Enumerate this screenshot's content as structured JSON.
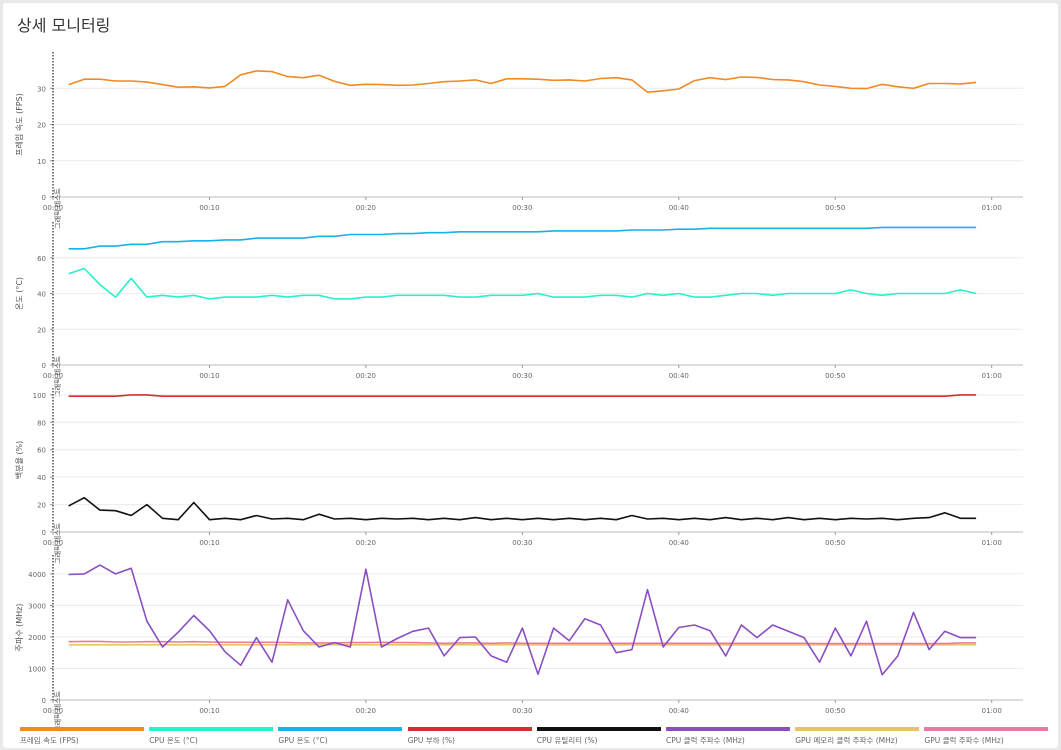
{
  "page": {
    "title": "상세 모니터링"
  },
  "chart_data": [
    {
      "type": "line",
      "ylabel": "프레임 속도 (FPS)",
      "marker_label": "그래픽 테스트",
      "ylim": [
        0,
        40
      ],
      "yticks": [
        0,
        10,
        20,
        30
      ],
      "xlim": [
        0,
        62
      ],
      "xtick_labels": [
        "00:00",
        "00:10",
        "00:20",
        "00:30",
        "00:40",
        "00:50",
        "01:00"
      ],
      "x": [
        1,
        2,
        3,
        4,
        5,
        6,
        7,
        8,
        9,
        10,
        11,
        12,
        13,
        14,
        15,
        16,
        17,
        18,
        19,
        20,
        21,
        22,
        23,
        24,
        25,
        26,
        27,
        28,
        29,
        30,
        31,
        32,
        33,
        34,
        35,
        36,
        37,
        38,
        39,
        40,
        41,
        42,
        43,
        44,
        45,
        46,
        47,
        48,
        49,
        50,
        51,
        52,
        53,
        54,
        55,
        56,
        57,
        58,
        59
      ],
      "series": [
        {
          "name": "프레임 속도 (FPS)",
          "color": "#f08a24",
          "values": [
            31,
            32.5,
            32.5,
            32,
            32,
            31.7,
            31,
            30.3,
            30.4,
            30.1,
            30.5,
            33.7,
            34.8,
            34.6,
            33.2,
            32.9,
            33.6,
            31.9,
            30.8,
            31.1,
            31,
            30.8,
            30.9,
            31.3,
            31.8,
            32,
            32.3,
            31.3,
            32.6,
            32.6,
            32.5,
            32.2,
            32.3,
            32,
            32.7,
            32.9,
            32.3,
            28.9,
            29.3,
            29.8,
            32.1,
            32.9,
            32.4,
            33.1,
            33,
            32.4,
            32.3,
            31.8,
            30.9,
            30.5,
            30,
            29.9,
            31.1,
            30.4,
            30,
            31.3,
            31.3,
            31.2,
            31.6
          ]
        }
      ]
    },
    {
      "type": "line",
      "ylabel": "온도 (°C)",
      "marker_label": "그래픽 테스트",
      "ylim": [
        0,
        80
      ],
      "yticks": [
        0,
        20,
        40,
        60
      ],
      "xlim": [
        0,
        62
      ],
      "xtick_labels": [
        "00:00",
        "00:10",
        "00:20",
        "00:30",
        "00:40",
        "00:50",
        "01:00"
      ],
      "x": [
        1,
        2,
        3,
        4,
        5,
        6,
        7,
        8,
        9,
        10,
        11,
        12,
        13,
        14,
        15,
        16,
        17,
        18,
        19,
        20,
        21,
        22,
        23,
        24,
        25,
        26,
        27,
        28,
        29,
        30,
        31,
        32,
        33,
        34,
        35,
        36,
        37,
        38,
        39,
        40,
        41,
        42,
        43,
        44,
        45,
        46,
        47,
        48,
        49,
        50,
        51,
        52,
        53,
        54,
        55,
        56,
        57,
        58,
        59
      ],
      "series": [
        {
          "name": "GPU 온도 (°C)",
          "color": "#1ab0ea",
          "values": [
            65,
            65,
            66.5,
            66.5,
            67.5,
            67.5,
            69,
            69,
            69.5,
            69.5,
            70,
            70,
            71,
            71,
            71,
            71,
            72,
            72,
            73,
            73,
            73,
            73.5,
            73.5,
            74,
            74,
            74.5,
            74.5,
            74.5,
            74.5,
            74.5,
            74.5,
            75,
            75,
            75,
            75,
            75,
            75.5,
            75.5,
            75.5,
            76,
            76,
            76.5,
            76.5,
            76.5,
            76.5,
            76.5,
            76.5,
            76.5,
            76.5,
            76.5,
            76.5,
            76.5,
            77,
            77,
            77,
            77,
            77,
            77,
            77
          ]
        },
        {
          "name": "CPU 온도 (°C)",
          "color": "#29f0cb",
          "values": [
            51,
            54,
            45,
            38,
            48.5,
            38,
            39,
            38,
            39,
            37,
            38,
            38,
            38,
            39,
            38,
            39,
            39,
            37,
            37,
            38,
            38,
            39,
            39,
            39,
            39,
            38,
            38,
            39,
            39,
            39,
            40,
            38,
            38,
            38,
            39,
            39,
            38,
            40,
            39,
            40,
            38,
            38,
            39,
            40,
            40,
            39,
            40,
            40,
            40,
            40,
            42,
            40,
            39,
            40,
            40,
            40,
            40,
            42,
            40
          ]
        }
      ]
    },
    {
      "type": "line",
      "ylabel": "백분율 (%)",
      "marker_label": "그래픽 테스트",
      "ylim": [
        0,
        105
      ],
      "yticks": [
        0,
        20,
        40,
        60,
        80,
        100
      ],
      "xlim": [
        0,
        62
      ],
      "xtick_labels": [
        "00:00",
        "00:10",
        "00:20",
        "00:30",
        "00:40",
        "00:50",
        "01:00"
      ],
      "x": [
        1,
        2,
        3,
        4,
        5,
        6,
        7,
        8,
        9,
        10,
        11,
        12,
        13,
        14,
        15,
        16,
        17,
        18,
        19,
        20,
        21,
        22,
        23,
        24,
        25,
        26,
        27,
        28,
        29,
        30,
        31,
        32,
        33,
        34,
        35,
        36,
        37,
        38,
        39,
        40,
        41,
        42,
        43,
        44,
        45,
        46,
        47,
        48,
        49,
        50,
        51,
        52,
        53,
        54,
        55,
        56,
        57,
        58,
        59
      ],
      "series": [
        {
          "name": "GPU 부하 (%)",
          "color": "#d03030",
          "values": [
            99,
            99,
            99,
            99,
            100,
            100,
            99,
            99,
            99,
            99,
            99,
            99,
            99,
            99,
            99,
            99,
            99,
            99,
            99,
            99,
            99,
            99,
            99,
            99,
            99,
            99,
            99,
            99,
            99,
            99,
            99,
            99,
            99,
            99,
            99,
            99,
            99,
            99,
            99,
            99,
            99,
            99,
            99,
            99,
            99,
            99,
            99,
            99,
            99,
            99,
            99,
            99,
            99,
            99,
            99,
            99,
            99,
            100,
            100
          ]
        },
        {
          "name": "CPU 유틸리티 (%)",
          "color": "#111111",
          "values": [
            19,
            25,
            16,
            15.5,
            12,
            20,
            10,
            9,
            21.5,
            9,
            10,
            9,
            12,
            9.5,
            10,
            9,
            13,
            9.5,
            10,
            9,
            10,
            9.5,
            10,
            9,
            10,
            9,
            10.5,
            9,
            10,
            9,
            10,
            9,
            10,
            9,
            10,
            9,
            12,
            9.5,
            10,
            9,
            10,
            9,
            10.5,
            9,
            10,
            9,
            10.5,
            9,
            10,
            9,
            10,
            9.5,
            10,
            9,
            10,
            10.5,
            14,
            10,
            10
          ]
        }
      ]
    },
    {
      "type": "line",
      "ylabel": "주파수 (MHz)",
      "marker_label": "그래픽 테스트",
      "ylim": [
        0,
        4600
      ],
      "yticks": [
        0,
        1000,
        2000,
        3000,
        4000
      ],
      "xlim": [
        0,
        62
      ],
      "xtick_labels": [
        "00:00",
        "00:10",
        "00:20",
        "00:30",
        "00:40",
        "00:50",
        "01:00"
      ],
      "x": [
        1,
        2,
        3,
        4,
        5,
        6,
        7,
        8,
        9,
        10,
        11,
        12,
        13,
        14,
        15,
        16,
        17,
        18,
        19,
        20,
        21,
        22,
        23,
        24,
        25,
        26,
        27,
        28,
        29,
        30,
        31,
        32,
        33,
        34,
        35,
        36,
        37,
        38,
        39,
        40,
        41,
        42,
        43,
        44,
        45,
        46,
        47,
        48,
        49,
        50,
        51,
        52,
        53,
        54,
        55,
        56,
        57,
        58,
        59
      ],
      "series": [
        {
          "name": "GPU 메모리 클럭 주파수 (MHz)",
          "color": "#e8c468",
          "values": [
            1750,
            1750,
            1750,
            1750,
            1750,
            1750,
            1750,
            1750,
            1750,
            1750,
            1750,
            1750,
            1750,
            1750,
            1750,
            1750,
            1750,
            1750,
            1750,
            1750,
            1750,
            1750,
            1750,
            1750,
            1750,
            1750,
            1750,
            1750,
            1750,
            1750,
            1750,
            1750,
            1750,
            1750,
            1750,
            1750,
            1750,
            1750,
            1750,
            1750,
            1750,
            1750,
            1750,
            1750,
            1750,
            1750,
            1750,
            1750,
            1750,
            1750,
            1750,
            1750,
            1750,
            1750,
            1750,
            1750,
            1750,
            1750,
            1750
          ]
        },
        {
          "name": "GPU 클럭 주파수 (MHz)",
          "color": "#e87ca0",
          "values": [
            1850,
            1860,
            1860,
            1840,
            1840,
            1850,
            1850,
            1840,
            1850,
            1840,
            1830,
            1830,
            1830,
            1830,
            1820,
            1810,
            1810,
            1810,
            1820,
            1820,
            1830,
            1820,
            1820,
            1810,
            1800,
            1810,
            1810,
            1800,
            1810,
            1800,
            1800,
            1800,
            1800,
            1800,
            1800,
            1800,
            1800,
            1800,
            1800,
            1800,
            1800,
            1800,
            1800,
            1800,
            1800,
            1800,
            1800,
            1800,
            1790,
            1790,
            1790,
            1790,
            1790,
            1790,
            1790,
            1790,
            1790,
            1810,
            1810
          ]
        },
        {
          "name": "CPU 클럭 주파수 (MHz)",
          "color": "#8a4fc2",
          "values": [
            3980,
            4000,
            4280,
            4000,
            4180,
            2500,
            1680,
            2150,
            2680,
            2200,
            1530,
            1100,
            1980,
            1200,
            3180,
            2200,
            1680,
            1820,
            1680,
            4150,
            1680,
            1950,
            2180,
            2280,
            1400,
            1980,
            2000,
            1400,
            1200,
            2280,
            820,
            2280,
            1880,
            2580,
            2380,
            1500,
            1600,
            3500,
            1680,
            2300,
            2380,
            2200,
            1400,
            2380,
            1980,
            2380,
            2180,
            1980,
            1200,
            2280,
            1400,
            2500,
            800,
            1400,
            2780,
            1600,
            2180,
            1980,
            1980
          ]
        }
      ]
    }
  ],
  "legend": [
    {
      "label": "프레임 속도 (FPS)",
      "color": "#f08a24"
    },
    {
      "label": "CPU 온도 (°C)",
      "color": "#29f0cb"
    },
    {
      "label": "GPU 온도 (°C)",
      "color": "#1ab0ea"
    },
    {
      "label": "GPU 부하 (%)",
      "color": "#d03030"
    },
    {
      "label": "CPU 유틸리티 (%)",
      "color": "#111111"
    },
    {
      "label": "CPU 클럭 주파수 (MHz)",
      "color": "#8a4fc2"
    },
    {
      "label": "GPU 메모리 클럭 주파수 (MHz)",
      "color": "#e8c468"
    },
    {
      "label": "GPU 클럭 주파수 (MHz)",
      "color": "#e87ca0"
    }
  ]
}
